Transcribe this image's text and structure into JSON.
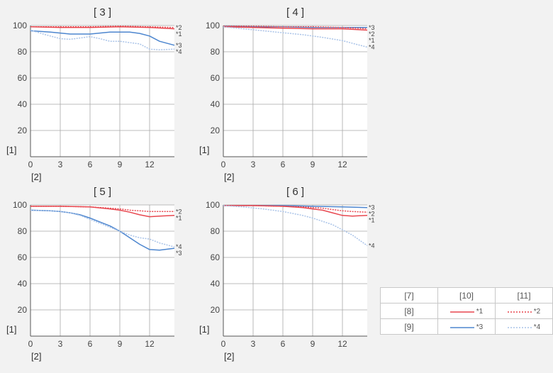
{
  "chart_data": [
    {
      "type": "line",
      "title": "[ 3 ]",
      "ylabel": "[1]",
      "xlabel": "[2]",
      "xlim": [
        0,
        14.5
      ],
      "ylim": [
        0,
        100
      ],
      "xticks": [
        0,
        3,
        6,
        9,
        12
      ],
      "yticks": [
        20,
        40,
        60,
        80,
        100
      ],
      "grid": true,
      "series": [
        {
          "name": "*1",
          "color": "#e8474f",
          "dashed": false,
          "x": [
            0,
            3,
            6,
            9,
            12,
            14.5
          ],
          "y": [
            99,
            98.5,
            98.5,
            99,
            98.5,
            97.5
          ]
        },
        {
          "name": "*2",
          "color": "#e8474f",
          "dashed": true,
          "x": [
            0,
            3,
            6,
            9,
            12,
            14.5
          ],
          "y": [
            99,
            99,
            99,
            99.5,
            99,
            98.5
          ]
        },
        {
          "name": "*3",
          "color": "#4d86cf",
          "dashed": false,
          "x": [
            0,
            2,
            4,
            6,
            8,
            10,
            11,
            12,
            13,
            14.5
          ],
          "y": [
            96,
            95,
            93.5,
            93.5,
            95,
            95,
            94,
            92,
            88,
            85
          ]
        },
        {
          "name": "*4",
          "color": "#a9c3e8",
          "dashed": true,
          "x": [
            0,
            1.5,
            3,
            4,
            6,
            7,
            8,
            9,
            10,
            11,
            12,
            13,
            14.5
          ],
          "y": [
            96.5,
            93,
            90,
            89.5,
            91.5,
            90,
            88,
            88,
            87,
            86,
            82,
            81.5,
            82
          ]
        }
      ]
    },
    {
      "type": "line",
      "title": "[ 4 ]",
      "ylabel": "[1]",
      "xlabel": "[2]",
      "xlim": [
        0,
        14.5
      ],
      "ylim": [
        0,
        100
      ],
      "xticks": [
        0,
        3,
        6,
        9,
        12
      ],
      "yticks": [
        20,
        40,
        60,
        80,
        100
      ],
      "grid": true,
      "series": [
        {
          "name": "*3",
          "color": "#4d86cf",
          "dashed": false,
          "x": [
            0,
            3,
            6,
            9,
            12,
            14.5
          ],
          "y": [
            99.5,
            99,
            99,
            98.5,
            98.5,
            98.5
          ]
        },
        {
          "name": "*2",
          "color": "#e8474f",
          "dashed": true,
          "x": [
            0,
            3,
            6,
            9,
            12,
            14.5
          ],
          "y": [
            99.5,
            99.5,
            99,
            99,
            98.5,
            97.5
          ]
        },
        {
          "name": "*1",
          "color": "#e8474f",
          "dashed": false,
          "x": [
            0,
            3,
            6,
            9,
            12,
            14.5
          ],
          "y": [
            99,
            98.5,
            98,
            97.5,
            97.5,
            96.5
          ]
        },
        {
          "name": "*4",
          "color": "#a9c3e8",
          "dashed": true,
          "x": [
            0,
            2,
            4,
            6,
            8,
            10,
            12,
            13,
            14.5
          ],
          "y": [
            99,
            97.5,
            96,
            94.5,
            93,
            91,
            88.5,
            86.5,
            83.5
          ]
        }
      ]
    },
    {
      "type": "line",
      "title": "[ 5 ]",
      "ylabel": "[1]",
      "xlabel": "[2]",
      "xlim": [
        0,
        14.5
      ],
      "ylim": [
        0,
        100
      ],
      "xticks": [
        0,
        3,
        6,
        9,
        12
      ],
      "yticks": [
        20,
        40,
        60,
        80,
        100
      ],
      "grid": true,
      "series": [
        {
          "name": "*2",
          "color": "#e8474f",
          "dashed": true,
          "x": [
            0,
            3,
            6,
            8,
            9,
            10,
            11,
            12,
            13,
            14.5
          ],
          "y": [
            99,
            99,
            98.5,
            97.5,
            97,
            96,
            95.5,
            95,
            95,
            95
          ]
        },
        {
          "name": "*1",
          "color": "#e8474f",
          "dashed": false,
          "x": [
            0,
            3,
            6,
            8,
            9,
            10,
            11,
            12,
            13,
            14.5
          ],
          "y": [
            99,
            99,
            98.5,
            97,
            96,
            94.5,
            92.5,
            91,
            91.5,
            92
          ]
        },
        {
          "name": "*3",
          "color": "#4d86cf",
          "dashed": false,
          "x": [
            0,
            2,
            3,
            4,
            5,
            6,
            7,
            8,
            9,
            10,
            11,
            12,
            13,
            14.5
          ],
          "y": [
            96,
            95.5,
            95,
            94,
            92.5,
            90,
            87,
            84,
            80,
            75,
            70,
            66,
            65.5,
            67
          ]
        },
        {
          "name": "*4",
          "color": "#a9c3e8",
          "dashed": true,
          "x": [
            0,
            2,
            3,
            4,
            5,
            6,
            7,
            8,
            9,
            10,
            11,
            12,
            13,
            14.5
          ],
          "y": [
            96,
            95.5,
            95,
            94,
            92,
            89,
            86,
            83,
            80,
            77,
            75,
            74,
            71,
            68
          ]
        }
      ]
    },
    {
      "type": "line",
      "title": "[ 6 ]",
      "ylabel": "[1]",
      "xlabel": "[2]",
      "xlim": [
        0,
        14.5
      ],
      "ylim": [
        0,
        100
      ],
      "xticks": [
        0,
        3,
        6,
        9,
        12
      ],
      "yticks": [
        20,
        40,
        60,
        80,
        100
      ],
      "grid": true,
      "series": [
        {
          "name": "*3",
          "color": "#4d86cf",
          "dashed": false,
          "x": [
            0,
            3,
            6,
            9,
            12,
            14.5
          ],
          "y": [
            99.5,
            99.5,
            99.5,
            99,
            98.5,
            98
          ]
        },
        {
          "name": "*2",
          "color": "#e8474f",
          "dashed": true,
          "x": [
            0,
            3,
            6,
            8,
            9,
            10,
            11,
            12,
            13,
            14.5
          ],
          "y": [
            99.5,
            99.5,
            99,
            98.5,
            98,
            97.5,
            96.5,
            95.5,
            95,
            94.5
          ]
        },
        {
          "name": "*1",
          "color": "#e8474f",
          "dashed": false,
          "x": [
            0,
            3,
            6,
            8,
            9,
            10,
            11,
            12,
            13,
            14.5
          ],
          "y": [
            99.5,
            99.5,
            99,
            98,
            97,
            96,
            94,
            92,
            91.5,
            92
          ]
        },
        {
          "name": "*4",
          "color": "#a9c3e8",
          "dashed": true,
          "x": [
            0,
            2,
            4,
            6,
            8,
            9,
            10,
            11,
            12,
            13,
            14.5
          ],
          "y": [
            99.5,
            98.5,
            97,
            95,
            92,
            90,
            87.5,
            85,
            81,
            77,
            69
          ]
        }
      ]
    }
  ],
  "legend": {
    "header": [
      "[7]",
      "[10]",
      "[11]"
    ],
    "rows": [
      {
        "label": "[8]",
        "a": {
          "name": "*1",
          "color": "#e8474f",
          "dashed": false
        },
        "b": {
          "name": "*2",
          "color": "#e8474f",
          "dashed": true
        }
      },
      {
        "label": "[9]",
        "a": {
          "name": "*3",
          "color": "#4d86cf",
          "dashed": false
        },
        "b": {
          "name": "*4",
          "color": "#a9c3e8",
          "dashed": true
        }
      }
    ]
  }
}
